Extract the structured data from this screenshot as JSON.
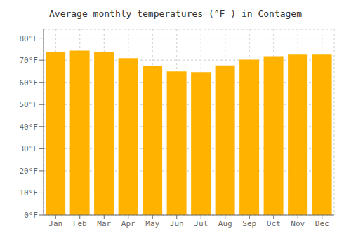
{
  "chart_data": {
    "type": "bar",
    "title": "Average monthly temperatures (°F ) in Contagem",
    "categories": [
      "Jan",
      "Feb",
      "Mar",
      "Apr",
      "May",
      "Jun",
      "Jul",
      "Aug",
      "Sep",
      "Oct",
      "Nov",
      "Dec"
    ],
    "values": [
      73.8,
      74.3,
      73.8,
      70.9,
      67.3,
      64.9,
      64.6,
      67.6,
      70.2,
      71.8,
      72.8,
      72.8
    ],
    "color": "#FFB300",
    "ylim": [
      0,
      84
    ],
    "yticks": [
      {
        "value": 0,
        "label": "0°F"
      },
      {
        "value": 10,
        "label": "10°F"
      },
      {
        "value": 20,
        "label": "20°F"
      },
      {
        "value": 30,
        "label": "30°F"
      },
      {
        "value": 40,
        "label": "40°F"
      },
      {
        "value": 50,
        "label": "50°F"
      },
      {
        "value": 60,
        "label": "60°F"
      },
      {
        "value": 70,
        "label": "70°F"
      },
      {
        "value": 80,
        "label": "80°F"
      }
    ],
    "grid": true
  }
}
